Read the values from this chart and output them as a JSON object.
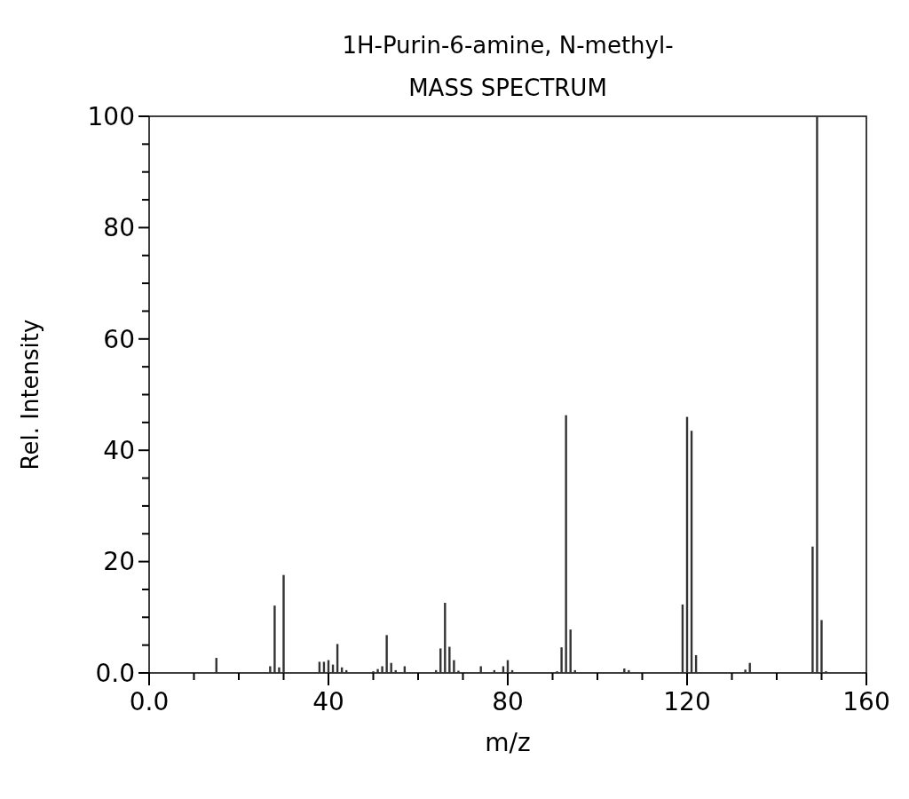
{
  "chart_data": {
    "type": "bar",
    "title": "1H-Purin-6-amine, N-methyl-",
    "subtitle": "MASS SPECTRUM",
    "xlabel": "m/z",
    "ylabel": "Rel. Intensity",
    "color": "#333333",
    "x": [
      15,
      27,
      28,
      29,
      30,
      38,
      39,
      40,
      41,
      42,
      43,
      44,
      50,
      51,
      52,
      53,
      54,
      55,
      57,
      64,
      65,
      66,
      67,
      68,
      69,
      74,
      77,
      79,
      80,
      81,
      91,
      92,
      93,
      94,
      95,
      106,
      107,
      119,
      120,
      121,
      122,
      133,
      134,
      148,
      149,
      150,
      151
    ],
    "values": [
      2.7,
      1.2,
      12.1,
      1,
      17.6,
      2,
      2,
      2.3,
      1.5,
      5.2,
      1,
      0.5,
      0.3,
      0.7,
      1.2,
      6.8,
      1.8,
      0.5,
      1.2,
      0.5,
      4.4,
      12.6,
      4.7,
      2.3,
      0.4,
      1.2,
      0.5,
      1.2,
      2.3,
      0.5,
      0.3,
      4.6,
      46.3,
      7.8,
      0.5,
      0.8,
      0.5,
      12.3,
      46,
      43.5,
      3.2,
      0.6,
      1.8,
      22.7,
      100,
      9.5,
      0.3
    ],
    "xlim": [
      0,
      160
    ],
    "xticks": [
      {
        "value": 0,
        "label": "0.0"
      },
      {
        "value": 10,
        "label": null
      },
      {
        "value": 20,
        "label": null
      },
      {
        "value": 30,
        "label": null
      },
      40,
      {
        "value": 50,
        "label": null
      },
      {
        "value": 60,
        "label": null
      },
      {
        "value": 70,
        "label": null
      },
      80,
      {
        "value": 90,
        "label": null
      },
      {
        "value": 100,
        "label": null
      },
      {
        "value": 110,
        "label": null
      },
      120,
      {
        "value": 130,
        "label": null
      },
      {
        "value": 140,
        "label": null
      },
      {
        "value": 150,
        "label": null
      },
      160
    ],
    "ylim": [
      0,
      100
    ],
    "yticks": [
      {
        "value": 0,
        "label": "0.0"
      },
      {
        "value": 5,
        "label": null
      },
      {
        "value": 10,
        "label": null
      },
      {
        "value": 15,
        "label": null
      },
      20,
      {
        "value": 25,
        "label": null
      },
      {
        "value": 30,
        "label": null
      },
      {
        "value": 35,
        "label": null
      },
      40,
      {
        "value": 45,
        "label": null
      },
      {
        "value": 50,
        "label": null
      },
      {
        "value": 55,
        "label": null
      },
      60,
      {
        "value": 65,
        "label": null
      },
      {
        "value": 70,
        "label": null
      },
      {
        "value": 75,
        "label": null
      },
      80,
      {
        "value": 85,
        "label": null
      },
      {
        "value": 90,
        "label": null
      },
      {
        "value": 95,
        "label": null
      },
      100
    ]
  }
}
